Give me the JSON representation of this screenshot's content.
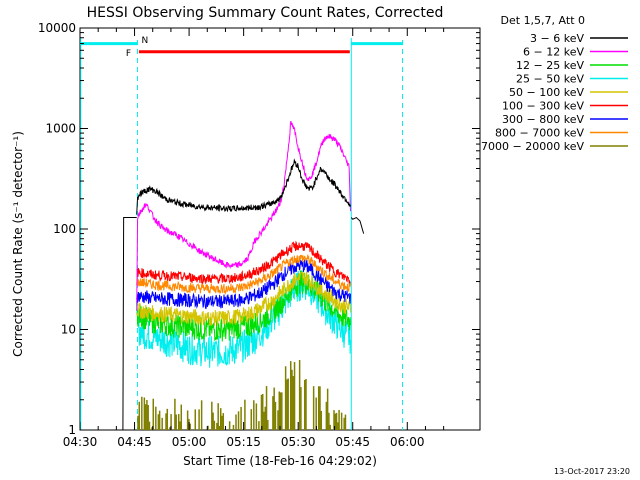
{
  "chart_data": {
    "type": "line",
    "title": "HESSI Observing Summary Count Rates, Corrected",
    "xlabel": "Start Time (18-Feb-16 04:29:02)",
    "ylabel": "Corrected Count Rate (s⁻¹ detector⁻¹)",
    "y_scale": "log",
    "ylim": [
      1,
      10000
    ],
    "xlim_minutes": [
      0,
      110
    ],
    "x_ticks": [
      {
        "min": 0,
        "label": "04:30"
      },
      {
        "min": 15,
        "label": "04:45"
      },
      {
        "min": 30,
        "label": "05:00"
      },
      {
        "min": 45,
        "label": "05:15"
      },
      {
        "min": 60,
        "label": "05:30"
      },
      {
        "min": 75,
        "label": "05:45"
      },
      {
        "min": 90,
        "label": "06:00"
      }
    ],
    "y_ticks": [
      {
        "value": 1,
        "label": "1"
      },
      {
        "value": 10,
        "label": "10"
      },
      {
        "value": 100,
        "label": "100"
      },
      {
        "value": 1000,
        "label": "1000"
      },
      {
        "value": 10000,
        "label": "10000"
      }
    ],
    "legend": {
      "placement": "right",
      "header": "Det 1,5,7, Att 0",
      "entries": [
        {
          "label": "3 − 6 keV",
          "color": "#000000"
        },
        {
          "label": "6 − 12 keV",
          "color": "#ff00ff"
        },
        {
          "label": "12 − 25 keV",
          "color": "#00dd00"
        },
        {
          "label": "25 − 50 keV",
          "color": "#00eeee"
        },
        {
          "label": "50 − 100 keV",
          "color": "#d4c400"
        },
        {
          "label": "100 − 300 keV",
          "color": "#ff0000"
        },
        {
          "label": "300 − 800 keV",
          "color": "#0000ff"
        },
        {
          "label": "800 − 7000 keV",
          "color": "#ff8800"
        },
        {
          "label": "7000 − 20000 keV",
          "color": "#808000"
        }
      ]
    },
    "series": [
      {
        "name": "3 − 6 keV",
        "color": "#000000",
        "x_min": [
          15.6,
          15.8,
          16.2,
          17,
          18,
          19,
          20,
          21,
          22,
          23,
          25,
          28,
          31,
          34,
          37,
          40,
          43,
          46,
          49,
          52,
          55,
          56,
          57,
          58,
          59,
          60,
          61,
          62,
          63,
          64,
          65,
          66,
          67,
          68,
          69,
          70,
          71,
          72,
          73,
          74,
          74.5
        ],
        "y": [
          140,
          200,
          220,
          230,
          240,
          250,
          245,
          235,
          220,
          205,
          190,
          178,
          170,
          165,
          162,
          160,
          160,
          162,
          165,
          175,
          200,
          240,
          300,
          380,
          470,
          420,
          320,
          270,
          250,
          260,
          320,
          390,
          380,
          340,
          300,
          280,
          250,
          220,
          200,
          180,
          160
        ]
      },
      {
        "name": "6 − 12 keV",
        "color": "#ff00ff",
        "x_min": [
          15.6,
          15.8,
          16.2,
          17,
          18,
          19,
          20,
          21,
          22,
          23,
          25,
          27,
          29,
          31,
          33,
          35,
          37,
          39,
          40,
          42,
          44,
          46,
          47,
          48,
          49,
          50,
          51,
          52,
          53,
          54,
          55,
          56,
          57,
          58,
          59,
          60,
          61,
          62,
          63,
          64,
          65,
          66,
          67,
          68,
          69,
          70,
          71,
          72,
          73,
          74,
          74.5
        ],
        "y": [
          15,
          130,
          140,
          155,
          175,
          160,
          135,
          120,
          110,
          100,
          92,
          85,
          75,
          68,
          60,
          55,
          50,
          46,
          44,
          43,
          44,
          50,
          60,
          75,
          85,
          95,
          105,
          120,
          135,
          155,
          180,
          260,
          520,
          1150,
          950,
          650,
          480,
          350,
          310,
          360,
          460,
          620,
          780,
          840,
          820,
          780,
          700,
          600,
          500,
          420,
          120
        ]
      },
      {
        "name": "12 − 25 keV",
        "color": "#00dd00",
        "x_min": [
          15.6,
          16,
          18,
          20,
          25,
          30,
          35,
          40,
          44,
          47,
          50,
          53,
          55,
          57,
          58,
          59,
          60,
          61,
          62,
          63,
          64,
          65,
          66,
          67,
          68,
          69,
          70,
          71,
          72,
          73,
          74,
          74.5
        ],
        "y": [
          15,
          14,
          13,
          12,
          11,
          10.5,
          10,
          10,
          10.5,
          11,
          12.5,
          15,
          18,
          22,
          25,
          27,
          29,
          30,
          29.5,
          28,
          26,
          24,
          22,
          20,
          18,
          17,
          15.5,
          14.5,
          13.5,
          13,
          12.5,
          12
        ]
      },
      {
        "name": "25 − 50 keV",
        "color": "#00eeee",
        "x_min": [
          15.6,
          16,
          18,
          20,
          25,
          30,
          35,
          40,
          44,
          47,
          50,
          53,
          55,
          57,
          58,
          59,
          60,
          61,
          62,
          63,
          64,
          65,
          66,
          67,
          68,
          69,
          70,
          71,
          72,
          73,
          74,
          74.5
        ],
        "y": [
          11,
          10,
          9,
          8.5,
          7.5,
          6.5,
          6,
          6,
          6.5,
          7.5,
          9.5,
          12.5,
          16,
          20,
          23,
          25.5,
          27,
          28,
          27.5,
          26,
          24,
          21.5,
          19,
          17,
          15,
          13.5,
          12,
          11,
          10,
          9,
          8.5,
          8
        ]
      },
      {
        "name": "50 − 100 keV",
        "color": "#d4c400",
        "x_min": [
          15.6,
          16,
          18,
          20,
          25,
          30,
          35,
          40,
          44,
          47,
          50,
          53,
          55,
          57,
          58,
          59,
          60,
          61,
          62,
          63,
          64,
          65,
          66,
          67,
          68,
          69,
          70,
          71,
          72,
          73,
          74,
          74.5
        ],
        "y": [
          16,
          15.5,
          15,
          14.5,
          14,
          13.5,
          13,
          13,
          13.5,
          14.5,
          16.5,
          19.5,
          23,
          27,
          29,
          31,
          32,
          33,
          32.5,
          31,
          29,
          27,
          25,
          23.5,
          22,
          21,
          19.5,
          18.5,
          17.5,
          17,
          16.5,
          16
        ]
      },
      {
        "name": "100 − 300 keV",
        "color": "#ff0000",
        "x_min": [
          15.6,
          16,
          18,
          20,
          25,
          30,
          35,
          40,
          44,
          47,
          50,
          53,
          55,
          57,
          58,
          59,
          60,
          61,
          62,
          63,
          64,
          65,
          66,
          67,
          68,
          69,
          70,
          71,
          72,
          73,
          74,
          74.5
        ],
        "y": [
          38,
          37,
          36,
          35,
          34,
          33,
          32,
          32,
          33,
          36,
          40,
          47,
          54,
          61,
          64,
          66,
          68,
          68,
          67,
          64,
          60,
          55,
          51,
          47,
          44,
          41,
          38,
          36,
          34,
          33,
          32,
          31
        ]
      },
      {
        "name": "300 − 800 keV",
        "color": "#0000ff",
        "x_min": [
          15.6,
          16,
          18,
          20,
          25,
          30,
          35,
          40,
          44,
          47,
          50,
          53,
          55,
          57,
          58,
          59,
          60,
          61,
          62,
          63,
          64,
          65,
          66,
          67,
          68,
          69,
          70,
          71,
          72,
          73,
          74,
          74.5
        ],
        "y": [
          22,
          21.5,
          21,
          20.5,
          20,
          19.5,
          19,
          19,
          19.5,
          21,
          23.5,
          28,
          33,
          38,
          40,
          42,
          43,
          43.5,
          43,
          41,
          38,
          35,
          32,
          29.5,
          27,
          25.5,
          24,
          23,
          22,
          21.5,
          21,
          20.5
        ]
      },
      {
        "name": "800 − 7000 keV",
        "color": "#ff8800",
        "x_min": [
          15.6,
          16,
          18,
          20,
          25,
          30,
          35,
          40,
          44,
          47,
          50,
          53,
          55,
          57,
          58,
          59,
          60,
          61,
          62,
          63,
          64,
          65,
          66,
          67,
          68,
          69,
          70,
          71,
          72,
          73,
          74,
          74.5
        ],
        "y": [
          30,
          29.5,
          29,
          28,
          27,
          26,
          25.5,
          25.5,
          26,
          28,
          31,
          36,
          41,
          46,
          48,
          50,
          51,
          51.5,
          51,
          49,
          46,
          43,
          40,
          37,
          34.5,
          32.5,
          30.5,
          29,
          28,
          27,
          26.5,
          26
        ]
      },
      {
        "name": "7000 − 20000 keV",
        "color": "#808000",
        "x_min": [
          15.6,
          17,
          20,
          25,
          30,
          35,
          40,
          45,
          50,
          53,
          55,
          56,
          57,
          58,
          59,
          60,
          61,
          62,
          63,
          64,
          65,
          66,
          67,
          68,
          69,
          70,
          71,
          72,
          73,
          74,
          74.5
        ],
        "y": [
          2,
          2,
          1.5,
          1.5,
          1.5,
          1.5,
          1.5,
          1.5,
          2,
          2,
          2.5,
          3,
          3.5,
          3.8,
          4,
          4,
          4,
          3.8,
          3.5,
          3.2,
          3,
          2.5,
          2,
          2,
          1.7,
          1.5,
          1.5,
          1.5,
          1.3,
          1.2,
          1.2
        ]
      }
    ],
    "pre_attenuator_segment": {
      "note": "3-6 keV rate before 04:45 (Det 1,5,7)",
      "x_min": [
        11.8,
        12,
        15.6
      ],
      "y": [
        1,
        130,
        130
      ]
    },
    "post_segment": {
      "x_min": [
        74.6,
        75,
        76,
        77,
        78
      ],
      "y": [
        130,
        125,
        130,
        120,
        90
      ]
    },
    "markers": [
      {
        "label": "F",
        "color": "#ff0000",
        "x_min_start": 16.2,
        "x_min_end": 74.2,
        "y_value": 5800
      },
      {
        "label": "N",
        "color": "#00eeee",
        "x_min_start": 15.8,
        "x_min_end": 74.6
      }
    ],
    "cyan_bars": [
      {
        "x_min_start": 0,
        "x_min_end": 15.8,
        "y_value": 7000
      },
      {
        "x_min_start": 74.6,
        "x_min_end": 88.7,
        "y_value": 7000
      }
    ],
    "vlines_solid": [
      0.2,
      74.6
    ],
    "vlines_dashed": [
      15.8,
      88.7
    ]
  },
  "footer": {
    "timestamp": "13-Oct-2017 23:20"
  }
}
